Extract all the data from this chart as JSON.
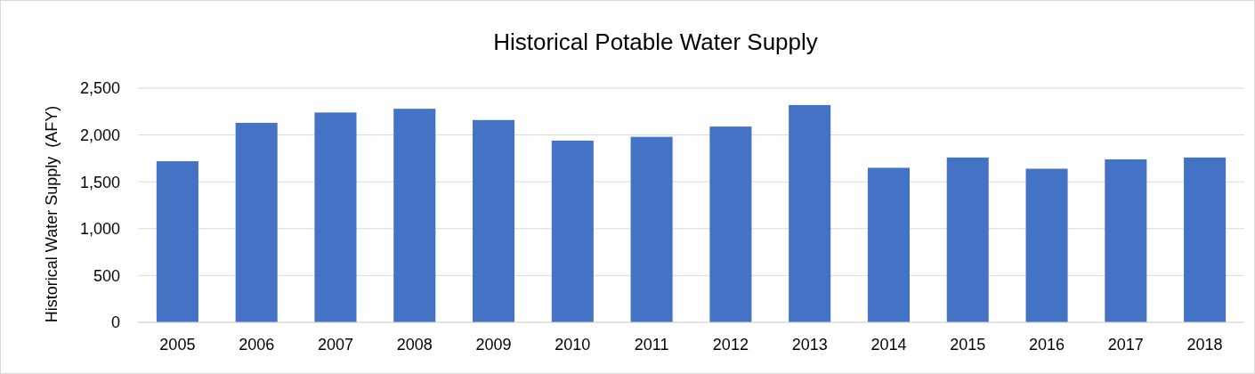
{
  "chart_data": {
    "type": "bar",
    "title": "Historical Potable Water Supply",
    "ylabel": "Historical Water Supply  (AFY)",
    "categories": [
      "2005",
      "2006",
      "2007",
      "2008",
      "2009",
      "2010",
      "2011",
      "2012",
      "2013",
      "2014",
      "2015",
      "2016",
      "2017",
      "2018"
    ],
    "values": [
      1720,
      2130,
      2240,
      2280,
      2160,
      1940,
      1980,
      2090,
      2320,
      1650,
      1760,
      1640,
      1740,
      1760
    ],
    "color": "#4472c4",
    "ylim": [
      0,
      2500
    ],
    "yticks": [
      {
        "value": 0,
        "label": "0"
      },
      {
        "value": 500,
        "label": "500"
      },
      {
        "value": 1000,
        "label": "1,000"
      },
      {
        "value": 1500,
        "label": "1,500"
      },
      {
        "value": 2000,
        "label": "2,000"
      },
      {
        "value": 2500,
        "label": "2,500"
      }
    ],
    "grid": true
  }
}
